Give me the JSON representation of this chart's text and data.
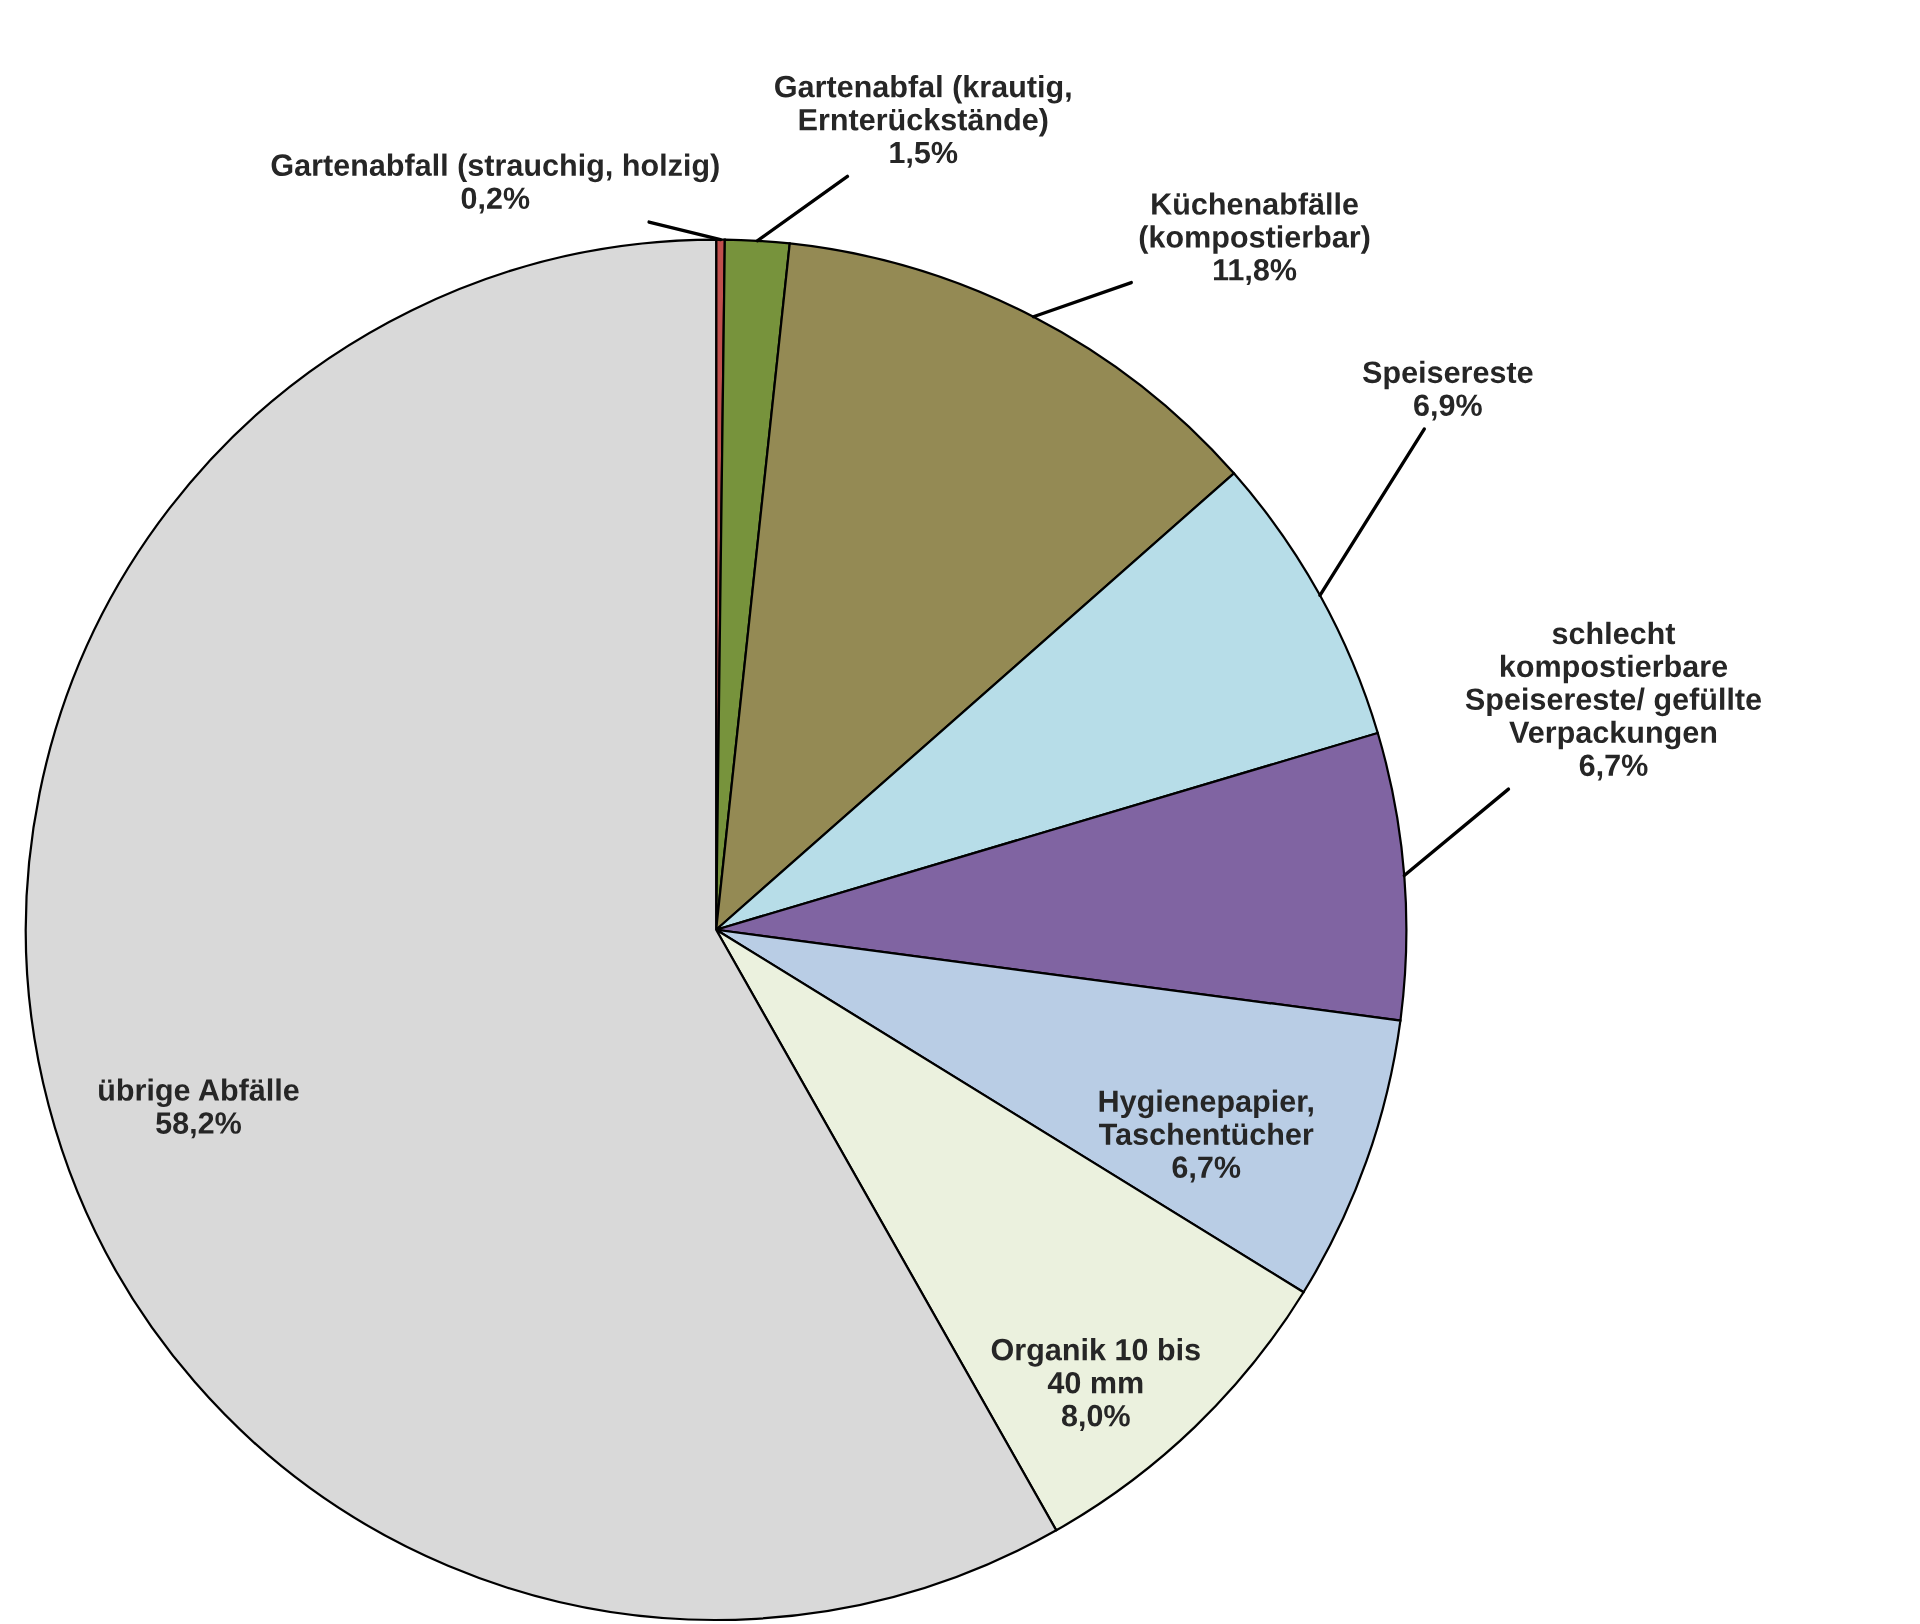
{
  "chart_data": {
    "type": "pie",
    "categories": [
      "Gartenabfall (strauchig, holzig)",
      "Gartenabfal (krautig,\nErnterückstände)",
      "Küchenabfälle\n(kompostierbar)",
      "Speisereste",
      "schlecht\nkompostierbare\nSpeisereste/ gefüllte\nVerpackungen",
      "Hygienepapier,\nTaschentücher",
      "Organik 10 bis\n40 mm",
      "übrige Abfälle"
    ],
    "values": [
      0.2,
      1.5,
      11.8,
      6.9,
      6.7,
      6.7,
      8.0,
      58.2
    ],
    "value_labels": [
      "0,2%",
      "1,5%",
      "11,8%",
      "6,9%",
      "6,7%",
      "6,7%",
      "8,0%",
      "58,2%"
    ],
    "colors": [
      "#c0504d",
      "#77933c",
      "#948a54",
      "#b7dde8",
      "#8064a2",
      "#b9cde5",
      "#ebf1de",
      "#d9d9d9"
    ],
    "legend": false
  }
}
